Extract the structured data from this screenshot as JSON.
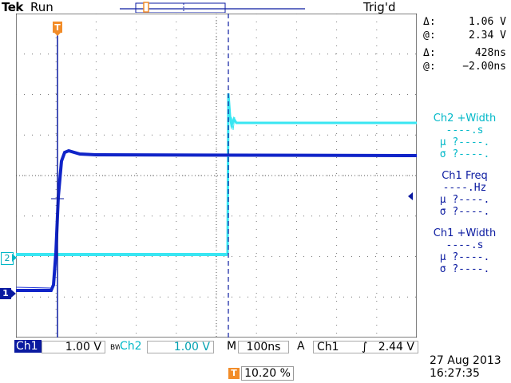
{
  "header": {
    "brand": "Tek",
    "run_status": "Run",
    "trigger_status": "Trig'd"
  },
  "cursor_readout": {
    "v_delta_symbol": "Δ:",
    "v_delta": "1.06 V",
    "v_at_symbol": "@:",
    "v_at": "2.34 V",
    "t_delta_symbol": "Δ:",
    "t_delta": "428ns",
    "t_at_symbol": "@:",
    "t_at": "−2.00ns"
  },
  "measurements": [
    {
      "title": "Ch2 +Width",
      "value": "----.s",
      "mean": "μ ?----.",
      "stdev": "σ ?----.",
      "color": "#00b8c8"
    },
    {
      "title": "Ch1 Freq",
      "value": "----.Hz",
      "mean": "μ ?----.",
      "stdev": "σ ?----.",
      "color": "#0a1aa0"
    },
    {
      "title": "Ch1 +Width",
      "value": "----.s",
      "mean": "μ ?----.",
      "stdev": "σ ?----.",
      "color": "#0a1aa0"
    }
  ],
  "channels": {
    "ch1": {
      "label": "Ch1",
      "scale": "1.00 V",
      "marker": "1",
      "color": "#0a1aa0"
    },
    "ch2": {
      "label": "Ch2",
      "scale": "1.00 V",
      "marker": "2",
      "color": "#00c8d8",
      "bw_label": "BW"
    }
  },
  "timebase": {
    "label": "M",
    "value": "100ns"
  },
  "trigger": {
    "label": "A",
    "source": "Ch1",
    "slope_symbol": "∫",
    "level": "2.44 V",
    "marker": "T"
  },
  "position": {
    "icon": "T",
    "value": "10.20 %"
  },
  "datetime": {
    "date": "27 Aug 2013",
    "time": "16:27:35"
  },
  "icons": {
    "trigger_level_arrow": "left-arrow-icon",
    "trigger_position": "t-marker-icon"
  }
}
